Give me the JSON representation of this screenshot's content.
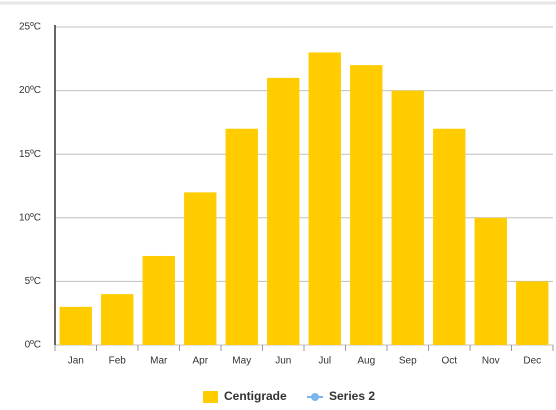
{
  "chart_data": {
    "type": "bar",
    "categories": [
      "Jan",
      "Feb",
      "Mar",
      "Apr",
      "May",
      "Jun",
      "Jul",
      "Aug",
      "Sep",
      "Oct",
      "Nov",
      "Dec"
    ],
    "series": [
      {
        "name": "Centigrade",
        "color": "#ffcc00",
        "values": [
          3,
          4,
          7,
          12,
          17,
          21,
          23,
          22,
          20,
          17,
          10,
          5
        ]
      },
      {
        "name": "Series 2",
        "color": "#7cb5ec",
        "values": [
          null,
          null,
          null,
          null,
          null,
          null,
          null,
          null,
          null,
          null,
          null,
          null
        ]
      }
    ],
    "ylim": [
      0,
      25
    ],
    "yticks": [
      {
        "value": 0,
        "label": "0ºC"
      },
      {
        "value": 5,
        "label": "5ºC"
      },
      {
        "value": 10,
        "label": "10ºC"
      },
      {
        "value": 15,
        "label": "15ºC"
      },
      {
        "value": 20,
        "label": "20ºC"
      },
      {
        "value": 25,
        "label": "25ºC"
      }
    ],
    "grid": true
  }
}
